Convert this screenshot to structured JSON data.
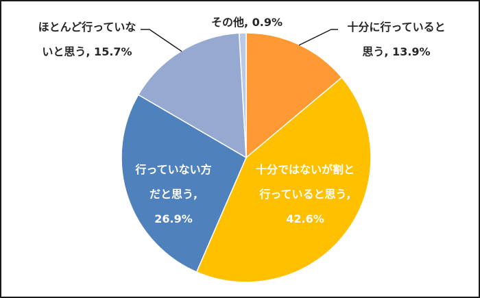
{
  "chart_data": {
    "type": "pie",
    "title": "",
    "start_angle_deg": 0,
    "direction": "clockwise",
    "categories": [
      "十分に行っていると思う",
      "十分ではないが割と行っていると思う",
      "行っていない方だと思う",
      "ほとんど行っていないと思う",
      "その他"
    ],
    "values": [
      13.9,
      42.6,
      26.9,
      15.7,
      0.9
    ],
    "colors": [
      "#FF9933",
      "#FFC000",
      "#4F81BD",
      "#95A9D1",
      "#B9CAE6"
    ],
    "unit": "%",
    "data_labels": [
      {
        "line1": "十分に行っていると",
        "line2": "思う, 13.9%"
      },
      {
        "line1": "十分ではないが割と",
        "line2": "行っていると思う,",
        "line3": "42.6%"
      },
      {
        "line1": "行っていない方",
        "line2": "だと思う,",
        "line3": "26.9%"
      },
      {
        "line1": "ほとんど行っていな",
        "line2": "いと思う, 15.7%"
      },
      {
        "line1": "その他, 0.9%"
      }
    ],
    "legend": "none"
  }
}
